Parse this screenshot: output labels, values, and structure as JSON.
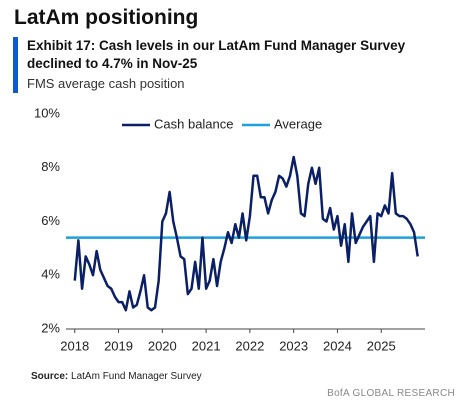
{
  "chart_data": {
    "type": "line",
    "title": "LatAm positioning",
    "subtitle": "Exhibit 17: Cash levels in our LatAm Fund Manager Survey declined to 4.7% in Nov-25",
    "description": "FMS average cash position",
    "source_label": "Source:",
    "source": "LatAm Fund Manager Survey",
    "brand": "BofA GLOBAL RESEARCH",
    "x": [
      2018,
      2018.083,
      2018.167,
      2018.25,
      2018.333,
      2018.417,
      2018.5,
      2018.583,
      2018.667,
      2018.75,
      2018.833,
      2018.917,
      2019,
      2019.083,
      2019.167,
      2019.25,
      2019.333,
      2019.417,
      2019.5,
      2019.583,
      2019.667,
      2019.75,
      2019.833,
      2019.917,
      2020,
      2020.083,
      2020.167,
      2020.25,
      2020.333,
      2020.417,
      2020.5,
      2020.583,
      2020.667,
      2020.75,
      2020.833,
      2020.917,
      2021,
      2021.083,
      2021.167,
      2021.25,
      2021.333,
      2021.417,
      2021.5,
      2021.583,
      2021.667,
      2021.75,
      2021.833,
      2021.917,
      2022,
      2022.083,
      2022.167,
      2022.25,
      2022.333,
      2022.417,
      2022.5,
      2022.583,
      2022.667,
      2022.75,
      2022.833,
      2022.917,
      2023,
      2023.083,
      2023.167,
      2023.25,
      2023.333,
      2023.417,
      2023.5,
      2023.583,
      2023.667,
      2023.75,
      2023.833,
      2023.917,
      2024,
      2024.083,
      2024.167,
      2024.25,
      2024.333,
      2024.417,
      2024.5,
      2024.583,
      2024.667,
      2024.75,
      2024.833,
      2024.917,
      2025,
      2025.083,
      2025.167,
      2025.25,
      2025.333,
      2025.417,
      2025.5,
      2025.583,
      2025.667,
      2025.75,
      2025.833
    ],
    "series": [
      {
        "name": "Cash balance",
        "color": "#0b1f66",
        "values": [
          3.8,
          5.3,
          3.5,
          4.7,
          4.4,
          4.0,
          4.9,
          4.2,
          3.9,
          3.6,
          3.5,
          3.2,
          3.0,
          3.0,
          2.7,
          3.4,
          2.8,
          2.9,
          3.4,
          4.0,
          2.8,
          2.7,
          2.8,
          3.8,
          6.0,
          6.3,
          7.1,
          6.0,
          5.4,
          4.7,
          4.6,
          3.3,
          3.5,
          4.5,
          3.5,
          5.4,
          3.5,
          3.8,
          4.6,
          3.6,
          4.5,
          5.0,
          5.6,
          5.2,
          5.9,
          5.4,
          6.3,
          5.3,
          6.2,
          7.7,
          7.7,
          6.9,
          6.9,
          6.3,
          6.8,
          7.1,
          7.7,
          7.6,
          7.3,
          7.7,
          8.4,
          7.7,
          6.3,
          6.2,
          7.4,
          8.0,
          7.4,
          8.0,
          6.1,
          6.0,
          6.5,
          5.7,
          6.2,
          5.1,
          5.9,
          4.5,
          6.3,
          5.2,
          5.5,
          5.8,
          6.0,
          6.2,
          4.5,
          6.3,
          6.2,
          6.6,
          6.3,
          7.8,
          6.3,
          6.2,
          6.2,
          6.1,
          5.9,
          5.6,
          4.7
        ]
      }
    ],
    "average": {
      "name": "Average",
      "value": 5.4,
      "color": "#1ea0dc"
    },
    "xlim": [
      2017.8,
      2026
    ],
    "xticks": [
      2018,
      2019,
      2020,
      2021,
      2022,
      2023,
      2024,
      2025
    ],
    "ylim": [
      2,
      10
    ],
    "yticks": [
      {
        "value": 2,
        "label": "2%"
      },
      {
        "value": 4,
        "label": "4%"
      },
      {
        "value": 6,
        "label": "6%"
      },
      {
        "value": 8,
        "label": "8%"
      },
      {
        "value": 10,
        "label": "10%"
      }
    ],
    "grid": false,
    "legend": "top"
  }
}
